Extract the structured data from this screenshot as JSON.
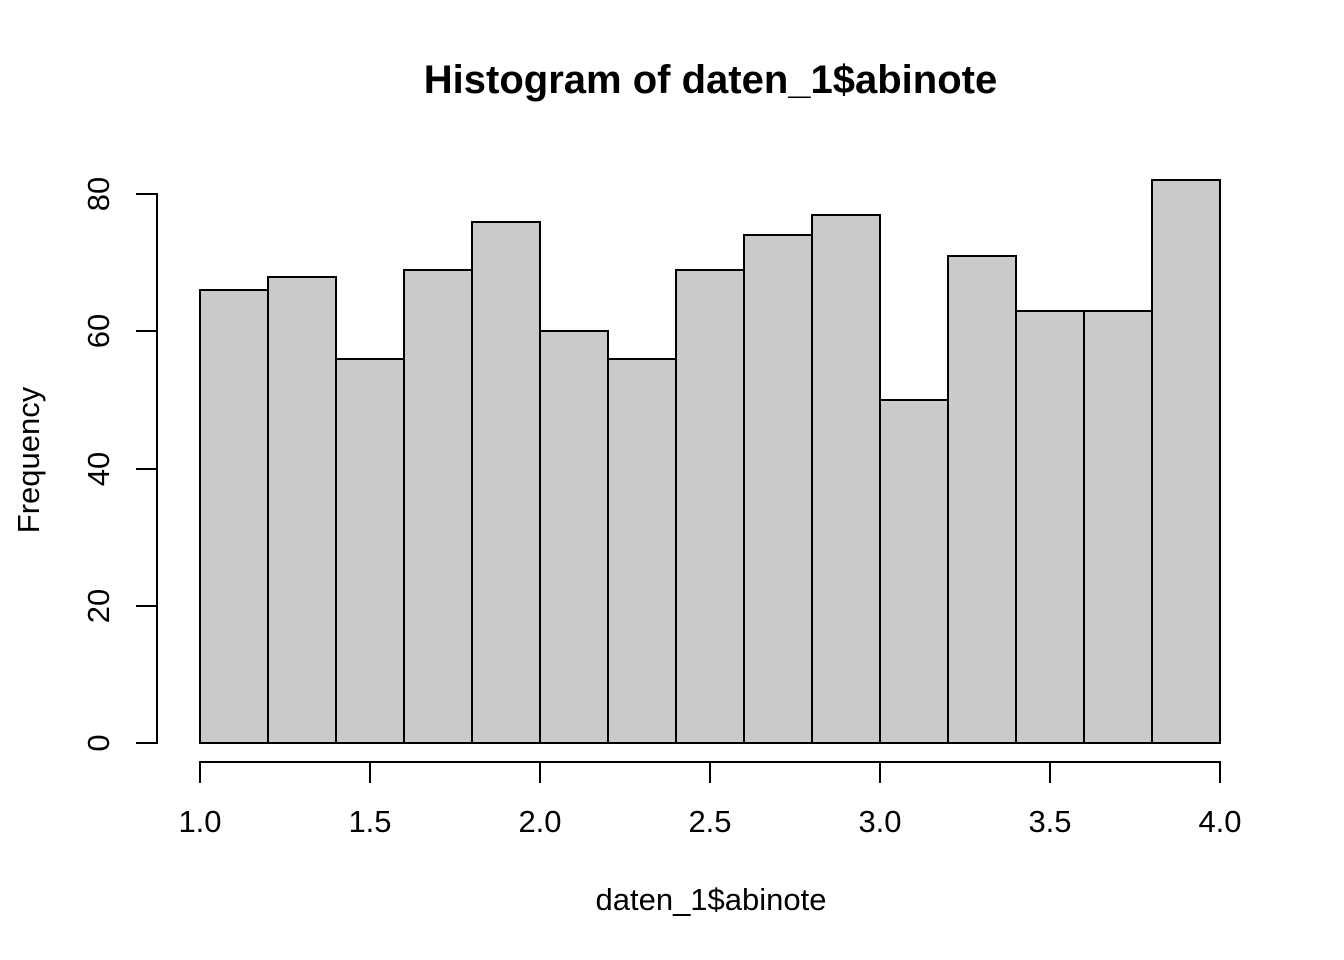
{
  "chart_data": {
    "type": "bar",
    "subtype": "histogram",
    "title": "Histogram of daten_1$abinote",
    "xlabel": "daten_1$abinote",
    "ylabel": "Frequency",
    "bin_start": 1.0,
    "bin_width": 0.2,
    "bin_edges": [
      1.0,
      1.2,
      1.4,
      1.6,
      1.8,
      2.0,
      2.2,
      2.4,
      2.6,
      2.8,
      3.0,
      3.2,
      3.4,
      3.6,
      3.8,
      4.0
    ],
    "values": [
      66,
      68,
      56,
      69,
      76,
      60,
      56,
      69,
      74,
      77,
      50,
      71,
      63,
      63,
      82
    ],
    "x_tick_labels": [
      "1.0",
      "1.5",
      "2.0",
      "2.5",
      "3.0",
      "3.5",
      "4.0"
    ],
    "x_tick_values": [
      1.0,
      1.5,
      2.0,
      2.5,
      3.0,
      3.5,
      4.0
    ],
    "y_tick_labels": [
      "0",
      "20",
      "40",
      "60",
      "80"
    ],
    "y_tick_values": [
      0,
      20,
      40,
      60,
      80
    ],
    "xlim": [
      1.0,
      4.0
    ],
    "ylim": [
      0,
      80
    ],
    "grid": false,
    "legend": false,
    "bar_fill_color": "#CACACA",
    "bar_border_color": "#000000",
    "axis_color": "#000000",
    "background_color": "#FFFFFF"
  }
}
